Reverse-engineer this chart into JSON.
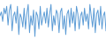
{
  "values": [
    2,
    4,
    -1,
    6,
    3,
    7,
    -3,
    5,
    8,
    -6,
    2,
    4,
    -2,
    7,
    -8,
    3,
    1,
    -4,
    6,
    -5,
    3,
    8,
    -7,
    2,
    -3,
    5,
    -9,
    4,
    2,
    -5,
    7,
    -3,
    1,
    4,
    -2,
    6,
    -4,
    3,
    8,
    -6,
    2,
    -3,
    5,
    3,
    -7,
    4,
    6,
    -5,
    2,
    -8,
    3,
    5,
    -4,
    6,
    -2,
    4,
    -6,
    7,
    3,
    -5,
    2,
    4,
    -3,
    6,
    -1,
    3,
    -5,
    8,
    2,
    -4,
    6,
    -7,
    3,
    5,
    -3,
    7,
    -5,
    2,
    4,
    -6
  ],
  "line_color": "#5b9bd5",
  "background_color": "#ffffff",
  "linewidth": 0.7
}
